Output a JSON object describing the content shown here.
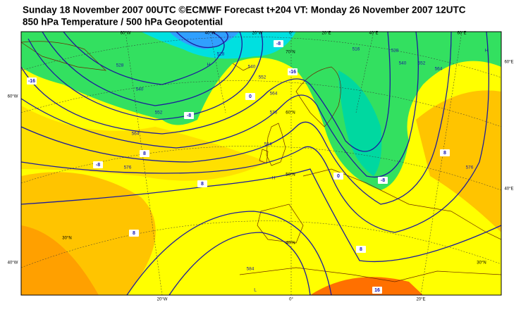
{
  "header": {
    "title": "Sunday 18 November 2007 00UTC ©ECMWF Forecast t+204 VT: Monday 26 November 2007 12UTC",
    "subtitle": "850 hPa Temperature / 500 hPa Geopotential"
  },
  "map": {
    "top_lon_labels": [
      "60°W",
      "40°W",
      "20°W",
      "0°",
      "20°E",
      "40°E",
      "60°E"
    ],
    "bottom_lon_labels": [
      "20°W",
      "0°",
      "20°E"
    ],
    "side_labels": [
      "60°W",
      "40°W",
      "60°E",
      "40°E"
    ],
    "lat_labels": [
      "70°N",
      "60°N",
      "50°N",
      "40°N",
      "30°N",
      "30°N"
    ],
    "height_labels": [
      "528",
      "540",
      "552",
      "564",
      "576",
      "528",
      "540",
      "552",
      "564",
      "576",
      "584",
      "516",
      "528",
      "540",
      "552",
      "564",
      "576",
      "584"
    ],
    "temperature_labels": [
      "-16",
      "-8",
      "0",
      "8",
      "8",
      "8",
      "-8",
      "0",
      "8",
      "-8",
      "-16",
      "16",
      "-8",
      "8"
    ],
    "centres": [
      "H",
      "H",
      "L",
      "H"
    ]
  }
}
